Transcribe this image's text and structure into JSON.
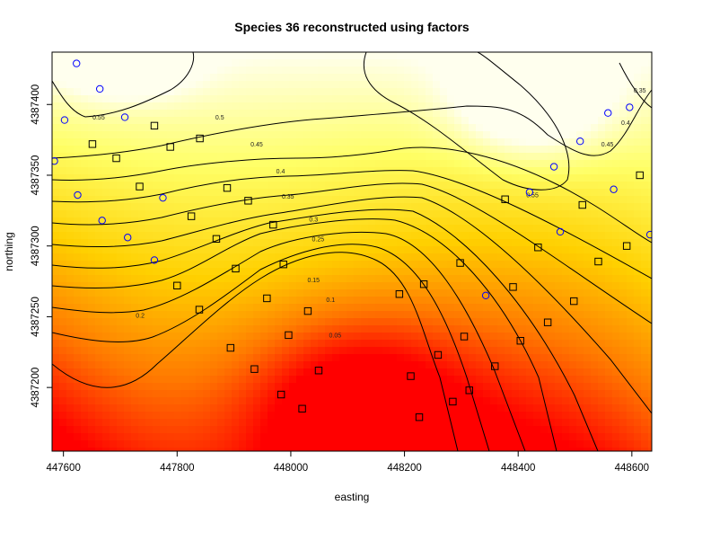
{
  "chart_data": {
    "type": "heatmap",
    "title": "Species 36 reconstructed using factors",
    "xlabel": "easting",
    "ylabel": "northing",
    "xlim": [
      447580,
      448635
    ],
    "ylim": [
      4387155,
      4387437
    ],
    "x_ticks": [
      447600,
      447800,
      448000,
      448200,
      448400,
      448600
    ],
    "y_ticks": [
      4387200,
      4387250,
      4387300,
      4387350,
      4387400
    ],
    "x_tick_labels": [
      "447600",
      "447800",
      "448000",
      "448200",
      "448400",
      "448600"
    ],
    "y_tick_labels": [
      "4387200",
      "4387250",
      "4387300",
      "4387350",
      "4387400"
    ],
    "colorscale": [
      "#ff0000",
      "#ff7700",
      "#ffd000",
      "#ffff66",
      "#ffffee"
    ],
    "grid": false,
    "contour_levels": [
      0.05,
      0.1,
      0.15,
      0.2,
      0.25,
      0.3,
      0.35,
      0.4,
      0.45,
      0.5,
      0.55
    ],
    "contour_labels": [
      {
        "text": "0.05",
        "x": 448078,
        "y": 4387237
      },
      {
        "text": "0.1",
        "x": 448070,
        "y": 4387262
      },
      {
        "text": "0.15",
        "x": 448040,
        "y": 4387276
      },
      {
        "text": "0.2",
        "x": 447735,
        "y": 4387251
      },
      {
        "text": "0.25",
        "x": 448048,
        "y": 4387305
      },
      {
        "text": "0.3",
        "x": 448040,
        "y": 4387319
      },
      {
        "text": "0.35",
        "x": 447995,
        "y": 4387335
      },
      {
        "text": "0.4",
        "x": 447982,
        "y": 4387353
      },
      {
        "text": "0.45",
        "x": 447940,
        "y": 4387372
      },
      {
        "text": "0.5",
        "x": 447875,
        "y": 4387391
      },
      {
        "text": "0.55",
        "x": 447662,
        "y": 4387391
      },
      {
        "text": "0.55",
        "x": 448425,
        "y": 4387336
      },
      {
        "text": "0.45",
        "x": 448557,
        "y": 4387372
      },
      {
        "text": "0.4",
        "x": 448589,
        "y": 4387387
      },
      {
        "text": "0.35",
        "x": 448614,
        "y": 4387410
      }
    ],
    "series": [
      {
        "marker": "circle",
        "color": "#0000ff",
        "points": [
          [
            447623,
            4387429
          ],
          [
            447664,
            4387411
          ],
          [
            447708,
            4387391
          ],
          [
            447602,
            4387389
          ],
          [
            447584,
            4387360
          ],
          [
            447625,
            4387336
          ],
          [
            447668,
            4387318
          ],
          [
            447713,
            4387306
          ],
          [
            447775,
            4387334
          ],
          [
            447760,
            4387290
          ],
          [
            448343,
            4387265
          ],
          [
            448420,
            4387338
          ],
          [
            448463,
            4387356
          ],
          [
            448509,
            4387374
          ],
          [
            448558,
            4387394
          ],
          [
            448596,
            4387398
          ],
          [
            448568,
            4387340
          ],
          [
            448474,
            4387310
          ],
          [
            448632,
            4387308
          ]
        ]
      },
      {
        "marker": "square",
        "color": "#000000",
        "points": [
          [
            447651,
            4387372
          ],
          [
            447760,
            4387385
          ],
          [
            447693,
            4387362
          ],
          [
            447734,
            4387342
          ],
          [
            447788,
            4387370
          ],
          [
            447840,
            4387376
          ],
          [
            447888,
            4387341
          ],
          [
            447925,
            4387332
          ],
          [
            447825,
            4387321
          ],
          [
            447869,
            4387305
          ],
          [
            447903,
            4387284
          ],
          [
            447969,
            4387315
          ],
          [
            447987,
            4387287
          ],
          [
            447800,
            4387272
          ],
          [
            447839,
            4387255
          ],
          [
            447958,
            4387263
          ],
          [
            447894,
            4387228
          ],
          [
            447996,
            4387237
          ],
          [
            448030,
            4387254
          ],
          [
            447936,
            4387213
          ],
          [
            447983,
            4387195
          ],
          [
            448020,
            4387185
          ],
          [
            448049,
            4387212
          ],
          [
            448191,
            4387266
          ],
          [
            448234,
            4387273
          ],
          [
            448298,
            4387288
          ],
          [
            448305,
            4387236
          ],
          [
            448259,
            4387223
          ],
          [
            448211,
            4387208
          ],
          [
            448285,
            4387190
          ],
          [
            448314,
            4387198
          ],
          [
            448359,
            4387215
          ],
          [
            448377,
            4387333
          ],
          [
            448391,
            4387271
          ],
          [
            448435,
            4387299
          ],
          [
            448513,
            4387329
          ],
          [
            448541,
            4387289
          ],
          [
            448591,
            4387300
          ],
          [
            448614,
            4387350
          ],
          [
            448498,
            4387261
          ],
          [
            448452,
            4387246
          ],
          [
            448404,
            4387233
          ],
          [
            448226,
            4387179
          ]
        ]
      }
    ]
  }
}
